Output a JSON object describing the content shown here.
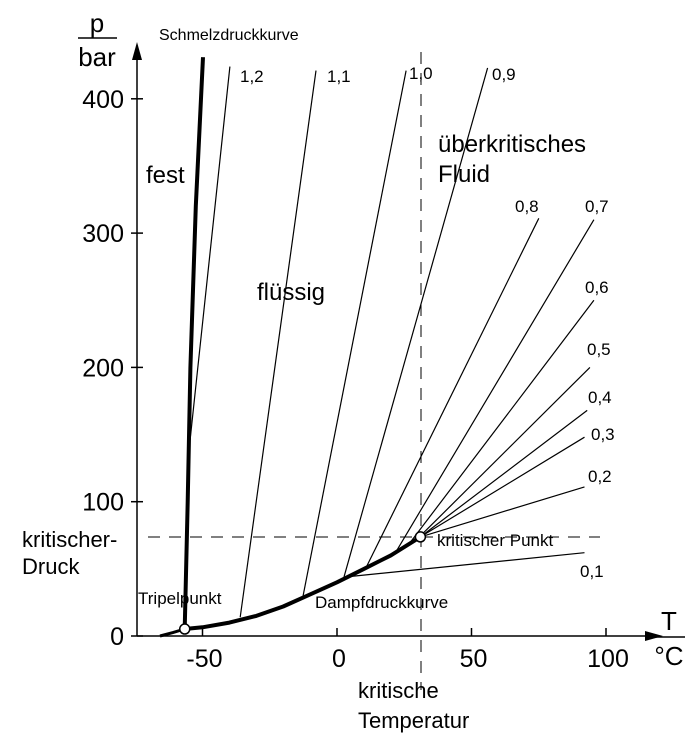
{
  "chart_data": {
    "type": "line",
    "y_axis": {
      "label": "p",
      "unit": "bar",
      "ticks": [
        0,
        100,
        200,
        300,
        400
      ],
      "tick_labels": [
        "0",
        "100",
        "200",
        "300",
        "400"
      ]
    },
    "x_axis": {
      "label": "T",
      "unit": "°C",
      "ticks": [
        -50,
        0,
        50,
        100
      ],
      "tick_labels": [
        "-50",
        "0",
        "50",
        "100"
      ]
    },
    "xlim": [
      -74,
      115
    ],
    "ylim": [
      0,
      440
    ],
    "grid": false,
    "critical_point": {
      "T": 31,
      "p": 73.8,
      "label": "kritischer Punkt"
    },
    "triple_point": {
      "T": -56.6,
      "p": 5.2,
      "label": "Tripelpunkt"
    },
    "critical_pressure_label": [
      "kritischer-",
      "Druck"
    ],
    "critical_temperature_label": [
      "kritische",
      "Temperatur"
    ],
    "curves": {
      "melting": {
        "label": "Schmelzdruckkurve",
        "points": [
          [
            -56.6,
            5.2
          ],
          [
            -55.5,
            100
          ],
          [
            -54.5,
            200
          ],
          [
            -52.5,
            320
          ],
          [
            -49.8,
            431
          ]
        ]
      },
      "sublimation": {
        "points": [
          [
            -65.8,
            0
          ],
          [
            -61,
            2.5
          ],
          [
            -56.6,
            5.2
          ]
        ]
      },
      "vapor_pressure": {
        "label": "Dampfdruckkurve",
        "points": [
          [
            -56.6,
            5.2
          ],
          [
            -50,
            6.5
          ],
          [
            -40,
            10
          ],
          [
            -30,
            15
          ],
          [
            -20,
            22
          ],
          [
            -10,
            31
          ],
          [
            0,
            40
          ],
          [
            10,
            50
          ],
          [
            20,
            60
          ],
          [
            31,
            73.8
          ]
        ]
      }
    },
    "isochores": [
      {
        "name": "1,2",
        "points": [
          [
            -54.6,
            146
          ],
          [
            -39.8,
            424
          ]
        ]
      },
      {
        "name": "1,1",
        "points": [
          [
            -36,
            14
          ],
          [
            -7.8,
            421
          ]
        ]
      },
      {
        "name": "1,0",
        "points": [
          [
            -12.6,
            30
          ],
          [
            25.7,
            421
          ]
        ]
      },
      {
        "name": "0,9",
        "points": [
          [
            2.6,
            44
          ],
          [
            56,
            423
          ]
        ]
      },
      {
        "name": "0,8",
        "points": [
          [
            10.8,
            51
          ],
          [
            75,
            311
          ]
        ]
      },
      {
        "name": "0,7",
        "points": [
          [
            22,
            63
          ],
          [
            95.5,
            310
          ]
        ]
      },
      {
        "name": "0,6",
        "points": [
          [
            27,
            69
          ],
          [
            95.5,
            250
          ]
        ]
      },
      {
        "name": "0,5",
        "points": [
          [
            30,
            72.5
          ],
          [
            94,
            200
          ]
        ]
      },
      {
        "name": "0,4",
        "points": [
          [
            31,
            73.8
          ],
          [
            93,
            168
          ]
        ]
      },
      {
        "name": "0,3",
        "points": [
          [
            31,
            73.8
          ],
          [
            92,
            148
          ]
        ]
      },
      {
        "name": "0,2",
        "points": [
          [
            31,
            73.8
          ],
          [
            92,
            111
          ]
        ]
      },
      {
        "name": "0,1",
        "points": [
          [
            3.5,
            44
          ],
          [
            92,
            62
          ]
        ]
      }
    ],
    "regions": {
      "solid": "fest",
      "liquid": "flüssig",
      "supercritical": [
        "überkritisches",
        "Fluid"
      ]
    }
  }
}
